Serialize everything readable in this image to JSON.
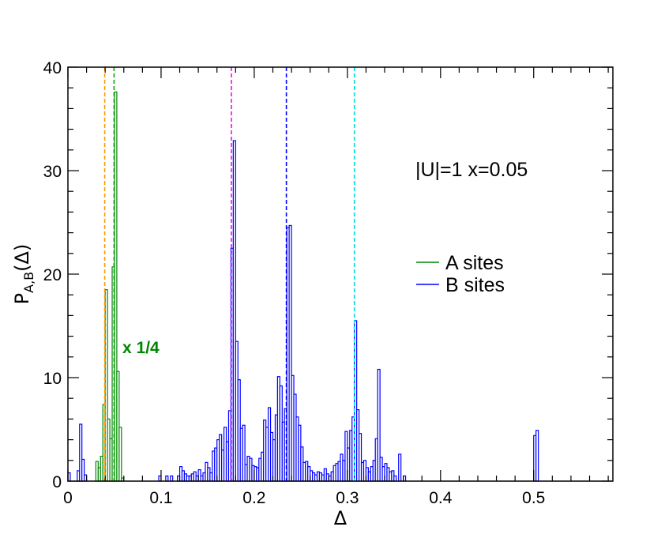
{
  "chart_data": {
    "type": "histogram",
    "xlabel": "Δ",
    "ylabel_main": "P",
    "ylabel_sub": "A,B",
    "ylabel_tail": "(Δ)",
    "xlim": [
      0,
      0.585
    ],
    "ylim": [
      0,
      40
    ],
    "xticks": [
      0,
      0.1,
      0.2,
      0.3,
      0.4,
      0.5
    ],
    "xtick_labels": [
      "0",
      "0.1",
      "0.2",
      "0.3",
      "0.4",
      "0.5"
    ],
    "yticks": [
      0,
      10,
      20,
      30,
      40
    ],
    "ytick_labels": [
      "0",
      "10",
      "20",
      "30",
      "40"
    ],
    "bin_width": 0.0025,
    "annotation": "|U|=1 x=0.05",
    "scale_note": "x 1/4",
    "scale_note_color": "#008800",
    "legend_position": "right",
    "series": [
      {
        "name": "A sites",
        "color": "#008800",
        "bins": [
          [
            0.03,
            1.9
          ],
          [
            0.0325,
            1.3
          ],
          [
            0.035,
            2.4
          ],
          [
            0.0375,
            7.4
          ],
          [
            0.04,
            18.5
          ],
          [
            0.0425,
            6.0
          ],
          [
            0.045,
            4.1
          ],
          [
            0.0475,
            20.7
          ],
          [
            0.05,
            37.6
          ],
          [
            0.0525,
            10.6
          ],
          [
            0.055,
            5.2
          ],
          [
            0.0575,
            0.3
          ]
        ]
      },
      {
        "name": "B sites",
        "color": "#0000ff",
        "bins": [
          [
            0.0,
            0.8
          ],
          [
            0.01,
            1.0
          ],
          [
            0.0125,
            5.5
          ],
          [
            0.015,
            2.1
          ],
          [
            0.0175,
            0.6
          ],
          [
            0.0975,
            0.5
          ],
          [
            0.105,
            0.5
          ],
          [
            0.11,
            0.5
          ],
          [
            0.1175,
            0.5
          ],
          [
            0.12,
            1.4
          ],
          [
            0.1225,
            1.0
          ],
          [
            0.125,
            0.7
          ],
          [
            0.1275,
            0.5
          ],
          [
            0.13,
            0.5
          ],
          [
            0.1325,
            0.7
          ],
          [
            0.135,
            0.9
          ],
          [
            0.1375,
            0.5
          ],
          [
            0.14,
            1.1
          ],
          [
            0.1425,
            0.5
          ],
          [
            0.145,
            0.8
          ],
          [
            0.1475,
            1.8
          ],
          [
            0.15,
            1.3
          ],
          [
            0.1525,
            0.8
          ],
          [
            0.155,
            2.9
          ],
          [
            0.1575,
            3.2
          ],
          [
            0.16,
            4.0
          ],
          [
            0.1625,
            4.5
          ],
          [
            0.165,
            3.0
          ],
          [
            0.1675,
            5.2
          ],
          [
            0.17,
            3.8
          ],
          [
            0.1725,
            6.8
          ],
          [
            0.175,
            22.5
          ],
          [
            0.1775,
            32.9
          ],
          [
            0.18,
            13.5
          ],
          [
            0.1825,
            9.8
          ],
          [
            0.185,
            5.1
          ],
          [
            0.1875,
            5.4
          ],
          [
            0.19,
            1.6
          ],
          [
            0.1925,
            2.4
          ],
          [
            0.195,
            2.2
          ],
          [
            0.1975,
            1.5
          ],
          [
            0.2,
            1.4
          ],
          [
            0.2025,
            1.3
          ],
          [
            0.205,
            2.2
          ],
          [
            0.2075,
            2.8
          ],
          [
            0.21,
            5.9
          ],
          [
            0.2125,
            5.2
          ],
          [
            0.215,
            7.1
          ],
          [
            0.2175,
            4.7
          ],
          [
            0.22,
            4.0
          ],
          [
            0.2225,
            6.4
          ],
          [
            0.225,
            10.1
          ],
          [
            0.2275,
            9.2
          ],
          [
            0.23,
            5.7
          ],
          [
            0.2325,
            7.0
          ],
          [
            0.235,
            24.5
          ],
          [
            0.2375,
            24.7
          ],
          [
            0.24,
            10.2
          ],
          [
            0.2425,
            8.4
          ],
          [
            0.245,
            6.2
          ],
          [
            0.2475,
            5.4
          ],
          [
            0.25,
            3.3
          ],
          [
            0.2525,
            1.8
          ],
          [
            0.255,
            1.9
          ],
          [
            0.2575,
            1.4
          ],
          [
            0.26,
            1.0
          ],
          [
            0.2625,
            0.8
          ],
          [
            0.265,
            0.6
          ],
          [
            0.2675,
            0.9
          ],
          [
            0.27,
            0.8
          ],
          [
            0.2725,
            0.6
          ],
          [
            0.275,
            1.2
          ],
          [
            0.2775,
            0.7
          ],
          [
            0.28,
            0.5
          ],
          [
            0.2825,
            0.9
          ],
          [
            0.285,
            1.5
          ],
          [
            0.2875,
            1.7
          ],
          [
            0.29,
            1.9
          ],
          [
            0.2925,
            2.6
          ],
          [
            0.295,
            2.0
          ],
          [
            0.2975,
            4.8
          ],
          [
            0.3,
            3.2
          ],
          [
            0.3025,
            4.9
          ],
          [
            0.305,
            6.2
          ],
          [
            0.3075,
            15.5
          ],
          [
            0.31,
            6.9
          ],
          [
            0.3125,
            4.6
          ],
          [
            0.315,
            1.8
          ],
          [
            0.3175,
            2.0
          ],
          [
            0.32,
            1.3
          ],
          [
            0.3225,
            0.9
          ],
          [
            0.325,
            1.4
          ],
          [
            0.3275,
            2.0
          ],
          [
            0.33,
            4.1
          ],
          [
            0.3325,
            10.8
          ],
          [
            0.335,
            2.3
          ],
          [
            0.3375,
            1.4
          ],
          [
            0.34,
            1.7
          ],
          [
            0.3425,
            1.3
          ],
          [
            0.345,
            0.9
          ],
          [
            0.3475,
            1.0
          ],
          [
            0.35,
            0.5
          ],
          [
            0.355,
            2.6
          ],
          [
            0.36,
            0.5
          ],
          [
            0.5,
            4.4
          ],
          [
            0.5025,
            4.9
          ]
        ]
      }
    ],
    "reference_lines": [
      {
        "x": 0.0395,
        "color": "#ff9900"
      },
      {
        "x": 0.0495,
        "color": "#00aa00"
      },
      {
        "x": 0.1755,
        "color": "#ff00ff"
      },
      {
        "x": 0.2345,
        "color": "#0000ff"
      },
      {
        "x": 0.3075,
        "color": "#00dddd"
      }
    ]
  }
}
